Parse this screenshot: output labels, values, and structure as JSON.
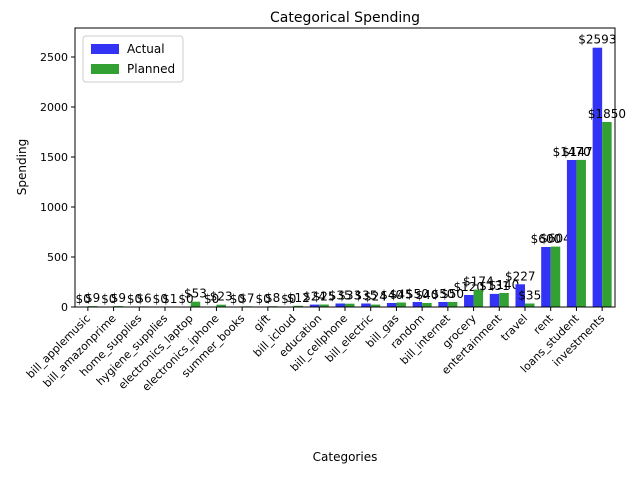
{
  "chart_data": {
    "type": "bar",
    "title": "Categorical Spending",
    "x_label": "Categories",
    "y_label": "Spending",
    "categories": [
      "bill_applemusic",
      "bill_amazonprime",
      "home_supplies",
      "hygiene_supplies",
      "electronics_laptop",
      "electronics_iphone",
      "summer_books",
      "gift",
      "bill_icloud",
      "education",
      "bill_cellphone",
      "bill_electric",
      "bill_gas",
      "random",
      "bill_internet",
      "grocery",
      "entertainment",
      "travel",
      "rent",
      "loans_student",
      "investments"
    ],
    "series": [
      {
        "name": "Actual",
        "color": "#3333f5",
        "values": [
          0,
          0,
          0,
          0,
          0,
          0,
          0,
          0,
          0,
          24,
          35,
          35,
          40,
          50,
          50,
          120,
          131,
          227,
          600,
          1470,
          2593
        ],
        "value_labels": [
          "$0",
          "$0",
          "$0",
          "$0",
          "$0",
          "$0",
          "$0",
          "$0",
          "$0",
          "$24",
          "$35",
          "$35",
          "$40",
          "$50",
          "$50",
          "$120",
          "$131",
          "$227",
          "$600",
          "$1470",
          "$2593"
        ]
      },
      {
        "name": "Planned",
        "color": "#33a033",
        "values": [
          9,
          9,
          6,
          1,
          53,
          23,
          7,
          8,
          12,
          25,
          33,
          24,
          45,
          40,
          50,
          174,
          140,
          35,
          604,
          1471,
          1850
        ],
        "value_labels": [
          "$9",
          "$9",
          "$6",
          "$1",
          "$53",
          "$23",
          "$7",
          "$8",
          "$12",
          "$25",
          "$33",
          "$24",
          "$45",
          "$40",
          "$50",
          "$174",
          "$140",
          "$35",
          "$604",
          "$1471",
          "$1850"
        ]
      }
    ],
    "ylim": [
      0,
      2790
    ],
    "yticks": [
      0,
      500,
      1000,
      1500,
      2000,
      2500
    ],
    "legend": "upper left"
  }
}
